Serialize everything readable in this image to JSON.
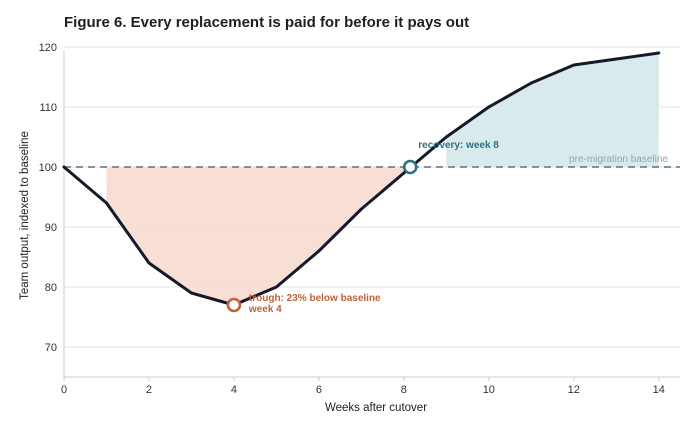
{
  "title": "Figure 6. Every replacement is paid for before it pays out",
  "chart_data": {
    "type": "line",
    "xlabel": "Weeks after cutover",
    "ylabel": "Team output, indexed to baseline",
    "xlim": [
      0,
      14.5
    ],
    "ylim": [
      65,
      119.5
    ],
    "xticks": [
      0,
      2,
      4,
      6,
      8,
      10,
      12,
      14
    ],
    "yticks": [
      70,
      80,
      90,
      100,
      110,
      120
    ],
    "grid": "horizontal",
    "series": [
      {
        "x": [
          0,
          1,
          2,
          3,
          4,
          5,
          6,
          7,
          8,
          9,
          10,
          11,
          12,
          13,
          14
        ],
        "values": [
          100,
          94,
          84,
          79,
          77,
          80,
          86,
          93,
          99,
          105,
          110,
          114,
          117,
          118,
          119
        ]
      }
    ],
    "baseline": {
      "value": 100,
      "label": "pre-migration baseline"
    },
    "shaded_regions": [
      {
        "kind": "below-baseline",
        "x_start": 1,
        "x_end": 8.1,
        "color": "#f7ddd4"
      },
      {
        "kind": "above-baseline",
        "x_start": 9,
        "x_end": 14,
        "color": "#d6e9ea"
      }
    ],
    "annotations": [
      {
        "id": "trough",
        "x": 4,
        "y": 77,
        "lines": [
          "trough: 23% below baseline",
          "week 4"
        ],
        "color": "#c0613a"
      },
      {
        "id": "recovery",
        "x": 8.15,
        "y": 100,
        "lines": [
          "recovery: week 8"
        ],
        "color": "#2b7180"
      }
    ],
    "colors": {
      "line": "#15192b",
      "grid": "#e3e6ea",
      "axis": "#c9ccd1",
      "baseline": "#5d6f86"
    }
  }
}
